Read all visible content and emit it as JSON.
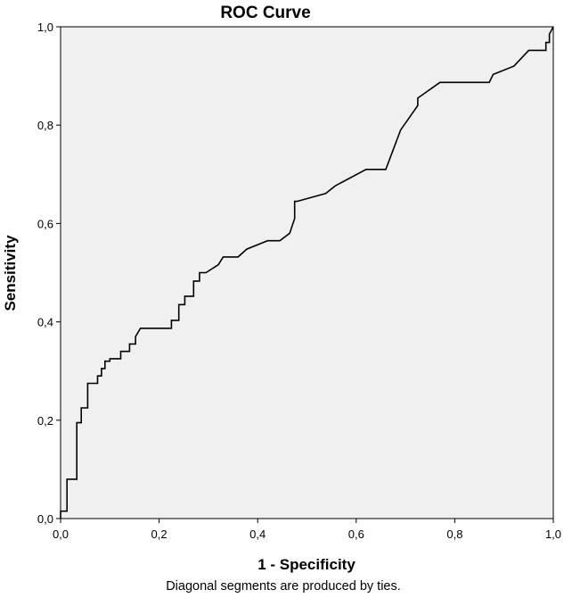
{
  "chart_data": {
    "type": "line",
    "title": "ROC Curve",
    "xlabel": "1 - Specificity",
    "ylabel": "Sensitivity",
    "footnote": "Diagonal segments are produced by ties.",
    "xlim": [
      0,
      1
    ],
    "ylim": [
      0,
      1
    ],
    "x_ticks": [
      "0,0",
      "0,2",
      "0,4",
      "0,6",
      "0,8",
      "1,0"
    ],
    "y_ticks": [
      "0,0",
      "0,2",
      "0,4",
      "0,6",
      "0,8",
      "1,0"
    ],
    "grid": false,
    "legend": "none",
    "plot_background": "#f0f0f0",
    "line_color": "#000000",
    "series": [
      {
        "x": [
          0.0,
          0.0,
          0.013,
          0.013,
          0.033,
          0.033,
          0.042,
          0.042,
          0.055,
          0.055,
          0.075,
          0.075,
          0.083,
          0.083,
          0.09,
          0.09,
          0.1,
          0.1,
          0.122,
          0.122,
          0.14,
          0.14,
          0.152,
          0.152,
          0.158,
          0.162,
          0.225,
          0.225,
          0.24,
          0.24,
          0.252,
          0.252,
          0.27,
          0.27,
          0.282,
          0.282,
          0.295,
          0.32,
          0.32,
          0.33,
          0.33,
          0.36,
          0.378,
          0.42,
          0.445,
          0.465,
          0.475,
          0.475,
          0.48,
          0.538,
          0.538,
          0.558,
          0.558,
          0.62,
          0.66,
          0.69,
          0.725,
          0.725,
          0.77,
          0.87,
          0.878,
          0.92,
          0.95,
          0.985,
          0.985,
          0.992,
          0.992,
          1.0
        ],
        "y": [
          0.0,
          0.015,
          0.015,
          0.08,
          0.08,
          0.195,
          0.195,
          0.225,
          0.225,
          0.275,
          0.275,
          0.29,
          0.29,
          0.305,
          0.305,
          0.32,
          0.32,
          0.325,
          0.325,
          0.34,
          0.34,
          0.355,
          0.355,
          0.37,
          0.38,
          0.387,
          0.387,
          0.403,
          0.403,
          0.435,
          0.435,
          0.452,
          0.452,
          0.483,
          0.483,
          0.5,
          0.5,
          0.516,
          0.516,
          0.532,
          0.532,
          0.532,
          0.548,
          0.565,
          0.565,
          0.58,
          0.61,
          0.645,
          0.645,
          0.661,
          0.661,
          0.677,
          0.677,
          0.71,
          0.71,
          0.79,
          0.84,
          0.855,
          0.887,
          0.887,
          0.903,
          0.92,
          0.952,
          0.952,
          0.968,
          0.968,
          0.985,
          1.0
        ]
      }
    ]
  }
}
